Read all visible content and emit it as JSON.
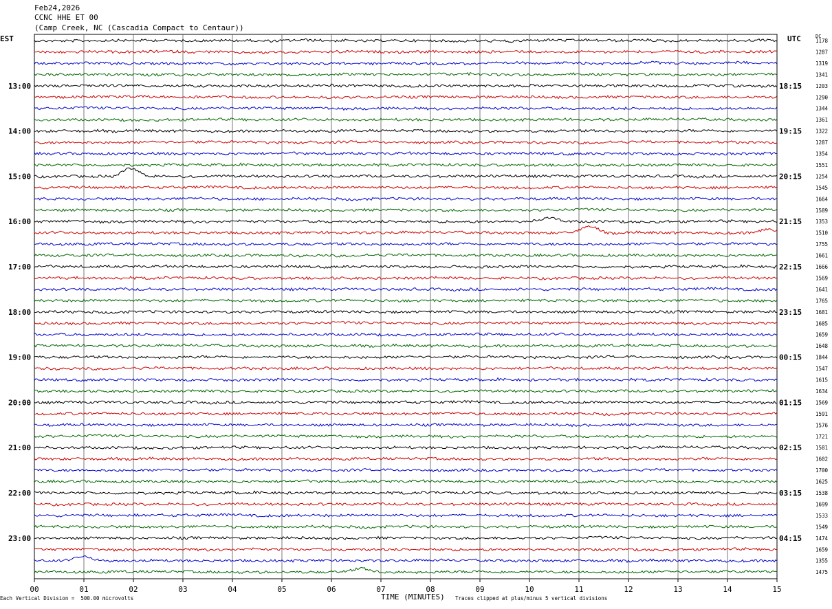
{
  "header": {
    "date": "Feb24,2026",
    "station": "CCNC HHE ET 00",
    "location": "(Camp Creek, NC (Cascadia Compact to Centaur))"
  },
  "left_axis_label": "EST",
  "right_axis_label": "UTC",
  "dc_label": "DC",
  "footer": {
    "scale": "Each Vertical Division =  500.00 microvolts",
    "xlabel": "TIME (MINUTES)",
    "clip_note": "Traces clipped at plus/minus 5 vertical divisions"
  },
  "colors": {
    "cycle": [
      "#000000",
      "#cc0000",
      "#0000cc",
      "#006600"
    ],
    "grid": "#000000"
  },
  "chart_data": {
    "type": "line",
    "title": "CCNC HHE ET 00",
    "xlabel": "TIME (MINUTES)",
    "xlim": [
      0,
      15
    ],
    "x_ticks": [
      "00",
      "01",
      "02",
      "03",
      "04",
      "05",
      "06",
      "07",
      "08",
      "09",
      "10",
      "11",
      "12",
      "13",
      "14",
      "15"
    ],
    "rows_per_hour": 4,
    "row_count": 48,
    "est_hour_labels": [
      "13:00",
      "14:00",
      "15:00",
      "16:00",
      "17:00",
      "18:00",
      "19:00",
      "20:00",
      "21:00",
      "22:00",
      "23:00"
    ],
    "utc_hour_labels": [
      "18:15",
      "19:15",
      "20:15",
      "21:15",
      "22:15",
      "23:15",
      "00:15",
      "01:15",
      "02:15",
      "03:15",
      "04:15"
    ],
    "hour_label_first_row": 4,
    "dc_offsets": [
      1178,
      1287,
      1319,
      1341,
      1203,
      1290,
      1344,
      1361,
      1322,
      1287,
      1354,
      1551,
      1254,
      1545,
      1664,
      1589,
      1353,
      1510,
      1755,
      1661,
      1666,
      1569,
      1641,
      1765,
      1681,
      1685,
      1659,
      1648,
      1844,
      1547,
      1615,
      1634,
      1569,
      1591,
      1576,
      1721,
      1581,
      1602,
      1700,
      1625,
      1538,
      1699,
      1533,
      1549,
      1474,
      1659,
      1355,
      1475
    ],
    "events": [
      {
        "row": 12,
        "minute": 1.95,
        "amp": 12
      },
      {
        "row": 16,
        "minute": 10.4,
        "amp": 6
      },
      {
        "row": 17,
        "minute": 11.2,
        "amp": 10
      },
      {
        "row": 17,
        "minute": 14.8,
        "amp": 5
      },
      {
        "row": 46,
        "minute": 1.0,
        "amp": 6
      },
      {
        "row": 47,
        "minute": 6.6,
        "amp": 5
      }
    ]
  }
}
